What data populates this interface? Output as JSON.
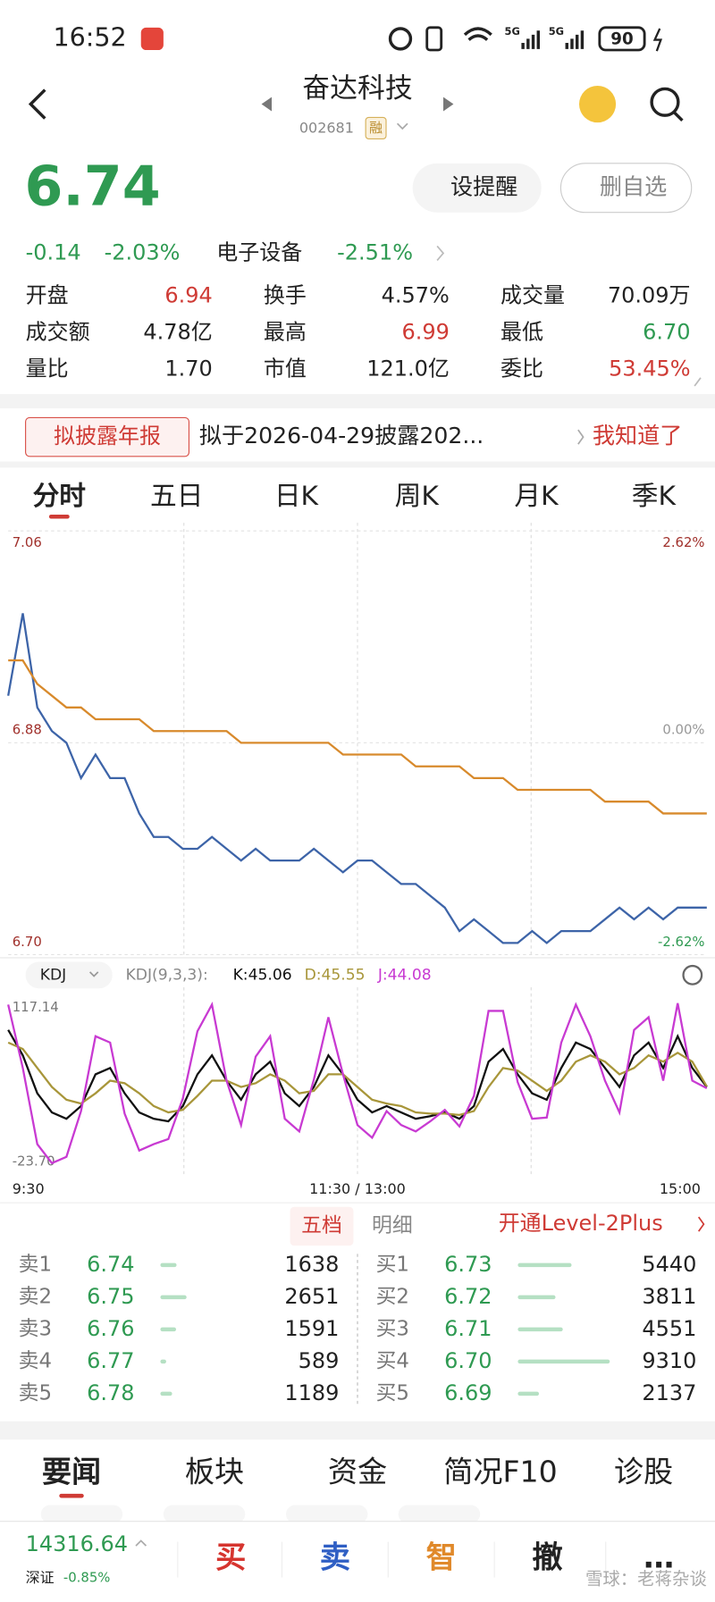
{
  "status_bar": {
    "time": "16:52",
    "network": [
      "5G",
      "5G"
    ],
    "battery": "90"
  },
  "header": {
    "title": "奋达科技",
    "code": "002681",
    "tag": "融"
  },
  "quote": {
    "price": "6.74",
    "price_color": "#2f9a52",
    "change": "-0.14",
    "change_pct": "-2.03%",
    "sector": "电子设备",
    "sector_pct": "-2.51%",
    "buttons": [
      "设提醒",
      "删自选"
    ],
    "stats": [
      [
        {
          "label": "开盘",
          "value": "6.94",
          "color": "#cf3b35"
        },
        {
          "label": "换手",
          "value": "4.57%",
          "color": "#222222"
        },
        {
          "label": "成交量",
          "value": "70.09万",
          "color": "#222222"
        }
      ],
      [
        {
          "label": "成交额",
          "value": "4.78亿",
          "color": "#222222"
        },
        {
          "label": "最高",
          "value": "6.99",
          "color": "#cf3b35"
        },
        {
          "label": "最低",
          "value": "6.70",
          "color": "#2f9a52"
        }
      ],
      [
        {
          "label": "量比",
          "value": "1.70",
          "color": "#222222"
        },
        {
          "label": "市值",
          "value": "121.0亿",
          "color": "#222222"
        },
        {
          "label": "委比",
          "value": "53.45%",
          "color": "#cf3b35"
        }
      ]
    ]
  },
  "notice": {
    "tag": "拟披露年报",
    "text": "拟于2026-04-29披露202...",
    "action": "我知道了"
  },
  "tabs": {
    "items": [
      "分时",
      "五日",
      "日K",
      "周K",
      "月K",
      "季K"
    ],
    "active": 0
  },
  "price_chart": {
    "type": "line",
    "ylim": [
      6.7,
      7.06
    ],
    "yticks": [
      {
        "value": 6.7,
        "label": "6.70"
      },
      6.88,
      7.06
    ],
    "y2lim": [
      -2.62,
      2.62
    ],
    "y2ticks": [
      {
        "value": -2.62,
        "label": "-2.62%"
      },
      {
        "value": 0,
        "label": "0.00%"
      },
      {
        "value": 2.62,
        "label": "2.62%"
      }
    ],
    "xlim": [
      0,
      48
    ],
    "xticks": [
      {
        "value": 0,
        "label": "9:30"
      },
      {
        "value": 24,
        "label": "11:30 / 13:00"
      },
      {
        "value": 48,
        "label": "15:00"
      }
    ],
    "grid": true,
    "series": [
      {
        "color": "#3d64a8",
        "values": [
          6.92,
          6.99,
          6.91,
          6.89,
          6.88,
          6.85,
          6.87,
          6.85,
          6.85,
          6.82,
          6.8,
          6.8,
          6.79,
          6.79,
          6.8,
          6.79,
          6.78,
          6.79,
          6.78,
          6.78,
          6.78,
          6.79,
          6.78,
          6.77,
          6.78,
          6.78,
          6.77,
          6.76,
          6.76,
          6.75,
          6.74,
          6.72,
          6.73,
          6.72,
          6.71,
          6.71,
          6.72,
          6.71,
          6.72,
          6.72,
          6.72,
          6.73,
          6.74,
          6.73,
          6.74,
          6.73,
          6.74,
          6.74,
          6.74
        ]
      },
      {
        "color": "#d88a2c",
        "values": [
          6.95,
          6.95,
          6.93,
          6.92,
          6.91,
          6.91,
          6.9,
          6.9,
          6.9,
          6.9,
          6.89,
          6.89,
          6.89,
          6.89,
          6.89,
          6.89,
          6.88,
          6.88,
          6.88,
          6.88,
          6.88,
          6.88,
          6.88,
          6.87,
          6.87,
          6.87,
          6.87,
          6.87,
          6.86,
          6.86,
          6.86,
          6.86,
          6.85,
          6.85,
          6.85,
          6.84,
          6.84,
          6.84,
          6.84,
          6.84,
          6.84,
          6.83,
          6.83,
          6.83,
          6.83,
          6.82,
          6.82,
          6.82,
          6.82
        ]
      }
    ]
  },
  "kdj": {
    "type": "line",
    "selector": "KDJ",
    "params": "KDJ(9,3,3):",
    "legend": [
      "K:45.06",
      "D:45.55",
      "J:44.08"
    ],
    "ylim": [
      -23.7,
      117.14
    ],
    "yticks": [
      {
        "value": -23.7,
        "label": "-23.70"
      },
      117.14
    ],
    "xlim": [
      0,
      48
    ],
    "series": [
      {
        "color": "#111111",
        "values": [
          90,
          70,
          40,
          25,
          20,
          30,
          55,
          60,
          40,
          25,
          20,
          18,
          30,
          55,
          70,
          50,
          35,
          55,
          65,
          40,
          30,
          45,
          70,
          55,
          35,
          25,
          30,
          25,
          20,
          22,
          25,
          20,
          30,
          65,
          75,
          55,
          40,
          35,
          60,
          80,
          75,
          60,
          45,
          70,
          80,
          60,
          85,
          60,
          45.06
        ]
      },
      {
        "color": "#a8963a",
        "values": [
          80,
          75,
          60,
          45,
          35,
          32,
          40,
          50,
          48,
          40,
          30,
          25,
          27,
          38,
          50,
          50,
          45,
          48,
          55,
          50,
          40,
          42,
          55,
          55,
          45,
          35,
          32,
          30,
          25,
          24,
          24,
          23,
          26,
          45,
          60,
          58,
          50,
          42,
          50,
          65,
          70,
          65,
          55,
          60,
          70,
          65,
          72,
          65,
          45.55
        ]
      },
      {
        "color": "#c83ad2",
        "values": [
          110,
          60,
          0,
          -15,
          -10,
          26,
          85,
          80,
          24,
          -5,
          0,
          4,
          36,
          89,
          110,
          50,
          15,
          69,
          85,
          20,
          10,
          51,
          100,
          55,
          15,
          5,
          26,
          15,
          10,
          18,
          27,
          14,
          38,
          105,
          105,
          49,
          20,
          21,
          80,
          110,
          85,
          50,
          25,
          90,
          100,
          50,
          111,
          50,
          44.08
        ]
      }
    ]
  },
  "order_book": {
    "tabs": [
      "五档",
      "明细"
    ],
    "upgrade": "开通Level-2Plus",
    "price_color": "#2f9a52",
    "bar_color": "#b5e0c3",
    "asks": [
      {
        "label": "卖1",
        "price": "6.74",
        "volume": 1638
      },
      {
        "label": "卖2",
        "price": "6.75",
        "volume": 2651
      },
      {
        "label": "卖3",
        "price": "6.76",
        "volume": 1591
      },
      {
        "label": "卖4",
        "price": "6.77",
        "volume": 589
      },
      {
        "label": "卖5",
        "price": "6.78",
        "volume": 1189
      }
    ],
    "bids": [
      {
        "label": "买1",
        "price": "6.73",
        "volume": 5440
      },
      {
        "label": "买2",
        "price": "6.72",
        "volume": 3811
      },
      {
        "label": "买3",
        "price": "6.71",
        "volume": 4551
      },
      {
        "label": "买4",
        "price": "6.70",
        "volume": 9310
      },
      {
        "label": "买5",
        "price": "6.69",
        "volume": 2137
      }
    ]
  },
  "news_tabs": {
    "items": [
      "要闻",
      "板块",
      "资金",
      "简况F10",
      "诊股"
    ],
    "active": 0
  },
  "footer": {
    "index_value": "14316.64",
    "index_name": "深证",
    "index_change": "-0.85%",
    "actions": [
      {
        "label": "买",
        "color": "#d6352f"
      },
      {
        "label": "卖",
        "color": "#2f5fc4"
      },
      {
        "label": "智",
        "color": "#e0892a"
      },
      {
        "label": "撤",
        "color": "#222222"
      },
      {
        "label": "…",
        "color": "#222222"
      }
    ],
    "watermark": "雪球：老蒋杂谈"
  }
}
